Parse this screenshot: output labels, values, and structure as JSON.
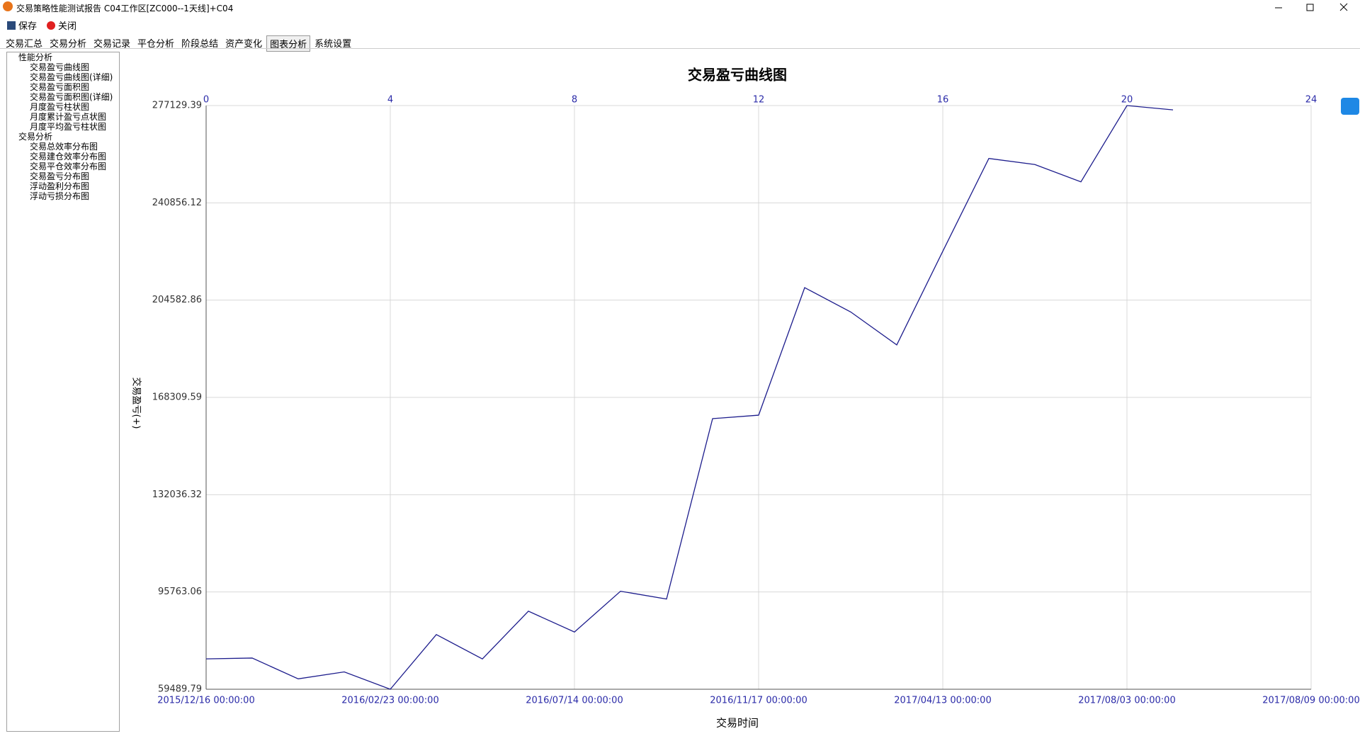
{
  "window": {
    "title": "交易策略性能测试报告 C04工作区[ZC000--1天线]+C04"
  },
  "toolbar": {
    "buttons": [
      "保存",
      "关闭"
    ]
  },
  "tabs": [
    "交易汇总",
    "交易分析",
    "交易记录",
    "平仓分析",
    "阶段总结",
    "资产变化",
    "图表分析",
    "系统设置"
  ],
  "tree": {
    "nodes": [
      {
        "label": "性能分析",
        "children": [
          "交易盈亏曲线图",
          "交易盈亏曲线图(详细)",
          "交易盈亏面积图",
          "交易盈亏面积图(详细)",
          "月度盈亏柱状图",
          "月度累计盈亏点状图",
          "月度平均盈亏柱状图"
        ]
      },
      {
        "label": "交易分析",
        "children": [
          "交易总效率分布图",
          "交易建仓效率分布图",
          "交易平仓效率分布图",
          "交易盈亏分布图",
          "浮动盈利分布图",
          "浮动亏损分布图"
        ]
      }
    ]
  },
  "chart_data": {
    "type": "line",
    "title": "交易盈亏曲线图",
    "x_label": "交易时间",
    "y_label": "交易盈亏(+)",
    "x": [
      0,
      1,
      2,
      3,
      4,
      5,
      6,
      7,
      8,
      9,
      10,
      11,
      12,
      13,
      14,
      15,
      16,
      17,
      18,
      19,
      20,
      21
    ],
    "values": [
      70809,
      71132,
      63370,
      65958,
      59489.79,
      79864,
      70809,
      88596,
      80834,
      96034,
      93123,
      160390,
      161684,
      209224,
      200169,
      187880,
      222807,
      257411,
      255147,
      248679,
      277129.39,
      275512
    ],
    "color": "#1c1c8c",
    "xlim": [
      0,
      24
    ],
    "xticks": [
      {
        "value": 0,
        "label": "2015/12/16 00:00:00"
      },
      {
        "value": 4,
        "label": "2016/02/23 00:00:00"
      },
      {
        "value": 8,
        "label": "2016/07/14 00:00:00"
      },
      {
        "value": 12,
        "label": "2016/11/17 00:00:00"
      },
      {
        "value": 16,
        "label": "2017/04/13 00:00:00"
      },
      {
        "value": 20,
        "label": "2017/08/03 00:00:00"
      },
      {
        "value": 24,
        "label": "2017/08/09 00:00:00"
      }
    ],
    "x2ticks": [
      0,
      4,
      8,
      12,
      16,
      20,
      24
    ],
    "ylim": [
      59489.79,
      277129.39
    ],
    "yticks": [
      59489.79,
      95763.06,
      132036.32,
      168309.59,
      204582.86,
      240856.12,
      277129.39
    ],
    "grid": true
  }
}
